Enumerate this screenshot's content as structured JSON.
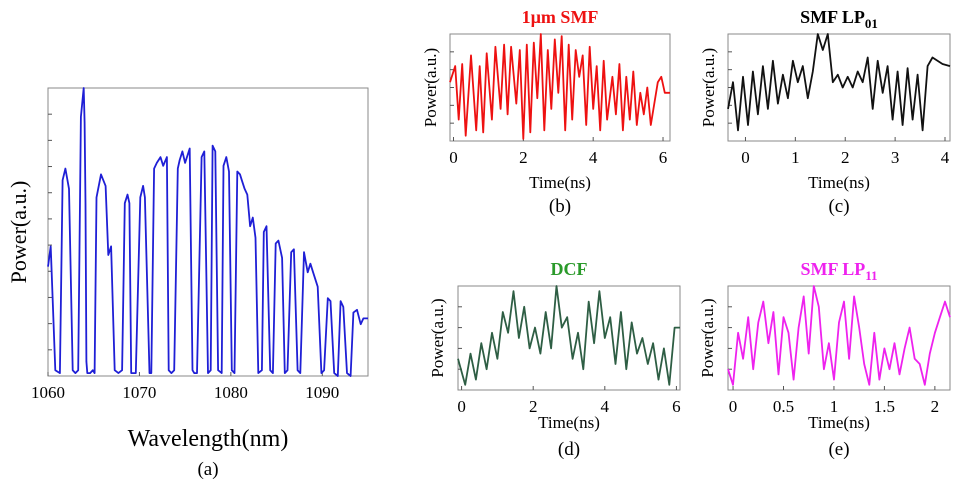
{
  "chart_data": [
    {
      "id": "a",
      "type": "line",
      "caption": "(a)",
      "title": "",
      "xlabel": "Wavelength(nm)",
      "ylabel": "Power(a.u.)",
      "xlim": [
        1060,
        1095
      ],
      "ylim": [
        0,
        1
      ],
      "xticks": [
        1060,
        1070,
        1080,
        1090
      ],
      "color": "#1f1fd6",
      "grid": false,
      "series": [
        {
          "x": [
            1060.0,
            1060.3,
            1060.8,
            1061.3,
            1061.6,
            1061.9,
            1062.3,
            1062.7,
            1063.0,
            1063.3,
            1063.6,
            1063.9,
            1064.0,
            1064.1,
            1064.2,
            1064.3,
            1064.6,
            1064.9,
            1065.1,
            1065.3,
            1065.8,
            1066.3,
            1066.6,
            1066.9,
            1067.3,
            1067.7,
            1068.1,
            1068.4,
            1068.7,
            1068.9,
            1069.1,
            1069.6,
            1070.1,
            1070.4,
            1070.6,
            1071.1,
            1071.3,
            1071.6,
            1071.9,
            1072.3,
            1072.6,
            1073.0,
            1073.2,
            1073.5,
            1073.8,
            1074.2,
            1074.4,
            1074.7,
            1075.0,
            1075.5,
            1075.8,
            1076.0,
            1076.3,
            1076.8,
            1077.1,
            1077.5,
            1077.8,
            1078.0,
            1078.3,
            1078.6,
            1079.0,
            1079.2,
            1079.5,
            1079.8,
            1080.1,
            1080.4,
            1080.7,
            1081.0,
            1081.2,
            1081.5,
            1081.8,
            1082.1,
            1082.4,
            1082.7,
            1083.0,
            1083.4,
            1083.6,
            1083.9,
            1084.3,
            1084.6,
            1084.9,
            1085.2,
            1085.6,
            1085.9,
            1086.2,
            1086.6,
            1086.9,
            1087.3,
            1087.6,
            1088.0,
            1088.4,
            1088.7,
            1089.0,
            1089.5,
            1089.9,
            1090.2,
            1090.6,
            1090.9,
            1091.3,
            1091.7,
            1092.0,
            1092.3,
            1092.7,
            1093.1,
            1093.4,
            1093.8,
            1094.2,
            1094.5,
            1095.0
          ],
          "y": [
            0.38,
            0.45,
            0.02,
            0.01,
            0.68,
            0.72,
            0.65,
            0.02,
            0.01,
            0.02,
            0.9,
            1.0,
            0.88,
            0.6,
            0.05,
            0.01,
            0.01,
            0.02,
            0.01,
            0.62,
            0.7,
            0.66,
            0.42,
            0.45,
            0.02,
            0.01,
            0.02,
            0.6,
            0.63,
            0.6,
            0.01,
            0.01,
            0.62,
            0.66,
            0.62,
            0.01,
            0.01,
            0.72,
            0.74,
            0.76,
            0.73,
            0.76,
            0.02,
            0.01,
            0.02,
            0.72,
            0.75,
            0.78,
            0.74,
            0.79,
            0.02,
            0.01,
            0.01,
            0.76,
            0.78,
            0.01,
            0.02,
            0.8,
            0.78,
            0.02,
            0.01,
            0.73,
            0.76,
            0.71,
            0.02,
            0.01,
            0.71,
            0.7,
            0.68,
            0.65,
            0.63,
            0.52,
            0.55,
            0.48,
            0.01,
            0.02,
            0.5,
            0.52,
            0.02,
            0.01,
            0.46,
            0.47,
            0.41,
            0.01,
            0.02,
            0.43,
            0.44,
            0.02,
            0.01,
            0.43,
            0.36,
            0.39,
            0.36,
            0.31,
            0.01,
            0.02,
            0.27,
            0.26,
            0.01,
            0.0,
            0.26,
            0.24,
            0.01,
            0.0,
            0.22,
            0.23,
            0.18,
            0.2,
            0.2
          ]
        }
      ]
    },
    {
      "id": "b",
      "type": "line",
      "caption": "(b)",
      "title": "1µm SMF",
      "title_color": "#ee1111",
      "xlabel": "Time(ns)",
      "ylabel": "Power(a.u.)",
      "xlim": [
        -0.1,
        6.2
      ],
      "ylim": [
        0,
        1
      ],
      "xticks": [
        0,
        2,
        4,
        6
      ],
      "color": "#ee1111",
      "grid": false,
      "series": [
        {
          "x": [
            -0.1,
            0.05,
            0.15,
            0.25,
            0.35,
            0.5,
            0.65,
            0.75,
            0.85,
            0.95,
            1.1,
            1.2,
            1.35,
            1.45,
            1.55,
            1.65,
            1.8,
            1.9,
            2.0,
            2.1,
            2.2,
            2.3,
            2.4,
            2.5,
            2.6,
            2.7,
            2.8,
            2.9,
            3.0,
            3.1,
            3.2,
            3.3,
            3.4,
            3.5,
            3.6,
            3.7,
            3.8,
            3.9,
            4.0,
            4.1,
            4.2,
            4.3,
            4.4,
            4.55,
            4.65,
            4.75,
            4.85,
            4.95,
            5.05,
            5.15,
            5.25,
            5.35,
            5.45,
            5.55,
            5.65,
            5.75,
            5.85,
            5.95,
            6.05,
            6.2
          ],
          "y": [
            0.55,
            0.7,
            0.2,
            0.72,
            0.05,
            0.8,
            0.1,
            0.7,
            0.08,
            0.82,
            0.2,
            0.88,
            0.3,
            0.9,
            0.25,
            0.88,
            0.35,
            0.85,
            0.02,
            0.9,
            0.08,
            0.92,
            0.4,
            1.0,
            0.1,
            0.85,
            0.3,
            0.95,
            0.45,
            0.98,
            0.1,
            0.9,
            0.2,
            0.85,
            0.6,
            0.8,
            0.15,
            0.88,
            0.3,
            0.7,
            0.1,
            0.75,
            0.2,
            0.6,
            0.25,
            0.72,
            0.1,
            0.6,
            0.2,
            0.65,
            0.15,
            0.45,
            0.25,
            0.5,
            0.15,
            0.35,
            0.55,
            0.6,
            0.45,
            0.45
          ]
        }
      ]
    },
    {
      "id": "c",
      "type": "line",
      "caption": "(c)",
      "title": "SMF LP",
      "title_sub": "01",
      "title_color": "#000000",
      "xlabel": "Time(ns)",
      "ylabel": "Power(a.u.)",
      "xlim": [
        -0.35,
        4.1
      ],
      "ylim": [
        0,
        1
      ],
      "xticks": [
        0,
        1,
        2,
        3,
        4
      ],
      "color": "#111111",
      "grid": false,
      "series": [
        {
          "x": [
            -0.35,
            -0.25,
            -0.15,
            -0.05,
            0.05,
            0.15,
            0.25,
            0.35,
            0.45,
            0.55,
            0.65,
            0.75,
            0.85,
            0.95,
            1.05,
            1.15,
            1.25,
            1.35,
            1.45,
            1.55,
            1.65,
            1.75,
            1.85,
            1.95,
            2.05,
            2.15,
            2.25,
            2.35,
            2.45,
            2.55,
            2.65,
            2.75,
            2.85,
            2.95,
            3.05,
            3.15,
            3.25,
            3.35,
            3.45,
            3.55,
            3.65,
            3.75,
            3.85,
            3.95,
            4.1
          ],
          "y": [
            0.3,
            0.55,
            0.1,
            0.6,
            0.15,
            0.65,
            0.25,
            0.7,
            0.3,
            0.75,
            0.35,
            0.62,
            0.4,
            0.75,
            0.55,
            0.7,
            0.4,
            0.65,
            1.0,
            0.85,
            1.0,
            0.55,
            0.62,
            0.5,
            0.6,
            0.5,
            0.65,
            0.55,
            0.78,
            0.3,
            0.75,
            0.45,
            0.7,
            0.2,
            0.65,
            0.15,
            0.68,
            0.2,
            0.62,
            0.1,
            0.7,
            0.78,
            0.75,
            0.72,
            0.7
          ]
        }
      ]
    },
    {
      "id": "d",
      "type": "line",
      "caption": "(d)",
      "title": "DCF",
      "title_color": "#2a9a2a",
      "xlabel": "Time(ns)",
      "ylabel": "Power(a.u.)",
      "xlim": [
        -0.1,
        6.1
      ],
      "ylim": [
        0,
        1
      ],
      "xticks": [
        0,
        2,
        4,
        6
      ],
      "color": "#2e5e44",
      "grid": false,
      "series": [
        {
          "x": [
            -0.1,
            0.1,
            0.25,
            0.4,
            0.55,
            0.7,
            0.85,
            1.0,
            1.15,
            1.3,
            1.45,
            1.6,
            1.75,
            1.9,
            2.05,
            2.2,
            2.35,
            2.5,
            2.65,
            2.8,
            2.95,
            3.1,
            3.25,
            3.4,
            3.55,
            3.7,
            3.85,
            4.0,
            4.15,
            4.3,
            4.45,
            4.6,
            4.75,
            4.9,
            5.05,
            5.2,
            5.35,
            5.5,
            5.65,
            5.8,
            5.95,
            6.1
          ],
          "y": [
            0.3,
            0.05,
            0.35,
            0.1,
            0.45,
            0.2,
            0.55,
            0.3,
            0.75,
            0.55,
            0.95,
            0.5,
            0.8,
            0.4,
            0.6,
            0.35,
            0.75,
            0.4,
            1.0,
            0.6,
            0.7,
            0.3,
            0.55,
            0.2,
            0.85,
            0.45,
            0.95,
            0.5,
            0.7,
            0.25,
            0.75,
            0.2,
            0.65,
            0.35,
            0.5,
            0.25,
            0.45,
            0.1,
            0.4,
            0.05,
            0.6,
            0.6
          ]
        }
      ]
    },
    {
      "id": "e",
      "type": "line",
      "caption": "(e)",
      "title": "SMF LP",
      "title_sub": "11",
      "title_color": "#ee22ee",
      "xlabel": "Time(ns)",
      "ylabel": "Power(a.u.)",
      "xlim": [
        -0.05,
        2.15
      ],
      "ylim": [
        0,
        1
      ],
      "xticks": [
        0,
        0.5,
        1,
        1.5,
        2
      ],
      "xticklabels": [
        "0",
        "0.5",
        "1",
        "1.5",
        "2"
      ],
      "color": "#ee22ee",
      "grid": false,
      "series": [
        {
          "x": [
            -0.05,
            0.0,
            0.05,
            0.1,
            0.15,
            0.2,
            0.25,
            0.3,
            0.35,
            0.4,
            0.45,
            0.5,
            0.55,
            0.6,
            0.65,
            0.7,
            0.75,
            0.8,
            0.85,
            0.9,
            0.95,
            1.0,
            1.05,
            1.1,
            1.15,
            1.2,
            1.25,
            1.3,
            1.35,
            1.4,
            1.45,
            1.5,
            1.55,
            1.6,
            1.65,
            1.7,
            1.75,
            1.8,
            1.85,
            1.9,
            1.95,
            2.0,
            2.05,
            2.1,
            2.15
          ],
          "y": [
            0.2,
            0.05,
            0.55,
            0.3,
            0.7,
            0.2,
            0.65,
            0.85,
            0.45,
            0.75,
            0.15,
            0.7,
            0.55,
            0.1,
            0.6,
            0.9,
            0.35,
            1.0,
            0.8,
            0.2,
            0.45,
            0.1,
            0.65,
            0.85,
            0.3,
            0.9,
            0.6,
            0.25,
            0.05,
            0.55,
            0.1,
            0.4,
            0.2,
            0.45,
            0.15,
            0.4,
            0.6,
            0.3,
            0.25,
            0.05,
            0.35,
            0.55,
            0.7,
            0.85,
            0.7
          ]
        }
      ]
    }
  ]
}
